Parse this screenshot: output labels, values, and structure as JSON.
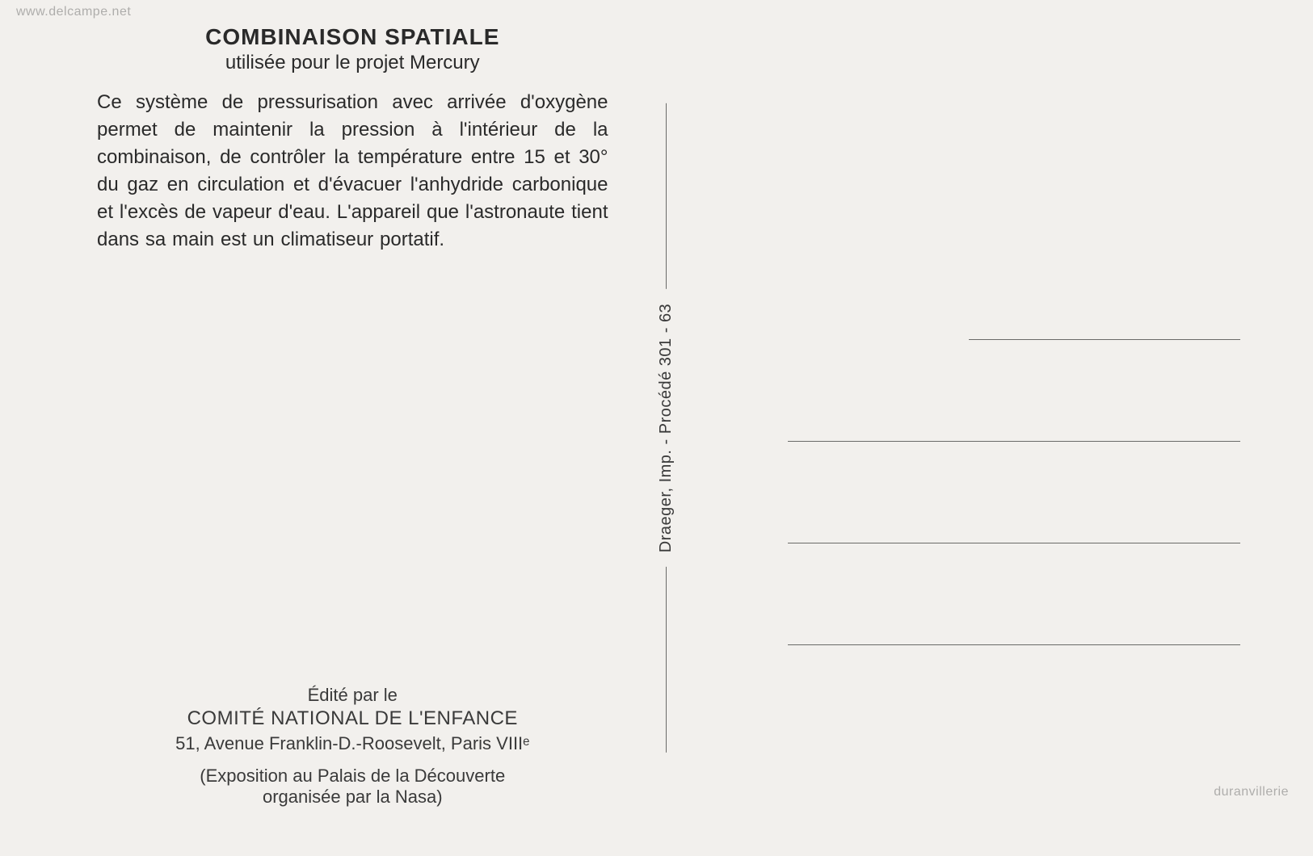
{
  "title": "COMBINAISON SPATIALE",
  "subtitle": "utilisée pour le projet Mercury",
  "body": "Ce système de pressurisation avec arrivée d'oxygène permet de maintenir la pression à l'intérieur de la combinaison, de contrôler la température entre 15 et 30° du gaz en circulation et d'évacuer l'anhydride carbonique et l'excès de vapeur d'eau. L'appareil que l'astronaute tient dans sa main est un climatiseur portatif.",
  "publisher": {
    "line1": "Édité par le",
    "line2": "COMITÉ NATIONAL DE L'ENFANCE",
    "line3": "51, Avenue Franklin-D.-Roosevelt, Paris VIIIᵉ",
    "line4": "(Exposition au Palais de la Découverte",
    "line5": "organisée par la Nasa)"
  },
  "printer_credit": "Draeger, Imp. - Procédé 301 - 63",
  "watermark_top": "www.delcampe.net",
  "watermark_bottom": "duranvillerie",
  "colors": {
    "background": "#f2f0ed",
    "text": "#2a2a2a",
    "rule": "#6a6a68",
    "watermark": "rgba(90,90,90,0.45)"
  }
}
